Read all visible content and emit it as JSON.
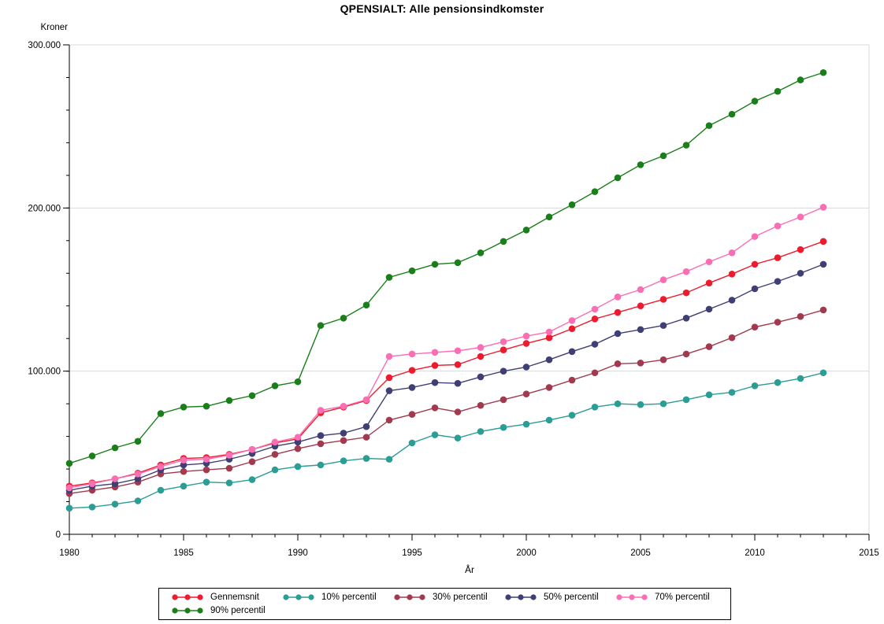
{
  "chart_data": {
    "type": "line",
    "title": "QPENSIALT: Alle pensionsindkomster",
    "ylabel": "Kroner",
    "xlabel": "År",
    "xlim": [
      1980,
      2015
    ],
    "ylim": [
      0,
      300000
    ],
    "grid": "horizontal-major",
    "legend_position": "bottom",
    "x_major_ticks": [
      1980,
      1985,
      1990,
      1995,
      2000,
      2005,
      2010,
      2015
    ],
    "x_minor_step": 1,
    "y_major_ticks": [
      {
        "value": 0,
        "label": "0"
      },
      {
        "value": 100000,
        "label": "100.000"
      },
      {
        "value": 200000,
        "label": "200.000"
      },
      {
        "value": 300000,
        "label": "300.000"
      }
    ],
    "y_minor_step": 20000,
    "x": [
      1980,
      1981,
      1982,
      1983,
      1984,
      1985,
      1986,
      1987,
      1988,
      1989,
      1990,
      1991,
      1992,
      1993,
      1994,
      1995,
      1996,
      1997,
      1998,
      1999,
      2000,
      2001,
      2002,
      2003,
      2004,
      2005,
      2006,
      2007,
      2008,
      2009,
      2010,
      2011,
      2012,
      2013
    ],
    "series": [
      {
        "name": "Gennemsnit",
        "color": "#ed1b2d",
        "values": [
          29500,
          31500,
          34000,
          37500,
          42500,
          46500,
          47000,
          49000,
          52000,
          56000,
          58500,
          74500,
          78000,
          82000,
          96000,
          100500,
          103500,
          104000,
          109000,
          113000,
          117000,
          120500,
          126000,
          132000,
          136000,
          140000,
          144000,
          148000,
          154000,
          159500,
          165500,
          169500,
          174500,
          179500
        ]
      },
      {
        "name": "10% percentil",
        "color": "#2a9d94",
        "values": [
          16000,
          16700,
          18500,
          20500,
          27000,
          29500,
          32000,
          31500,
          33500,
          39500,
          41500,
          42500,
          45000,
          46500,
          46000,
          56000,
          61000,
          59000,
          63000,
          65500,
          67500,
          70000,
          73000,
          78000,
          80000,
          79500,
          80000,
          82500,
          85500,
          87000,
          91000,
          93000,
          95500,
          99000
        ]
      },
      {
        "name": "30% percentil",
        "color": "#a13a4e",
        "values": [
          25000,
          27000,
          29000,
          32000,
          37000,
          38500,
          39500,
          40500,
          44500,
          49000,
          52500,
          55500,
          57500,
          59500,
          70000,
          73500,
          77500,
          75000,
          79000,
          82500,
          86000,
          90000,
          94500,
          99000,
          104500,
          105000,
          107000,
          110500,
          115000,
          120500,
          127000,
          130000,
          133500,
          137500
        ]
      },
      {
        "name": "50% percentil",
        "color": "#3f3f75",
        "values": [
          27000,
          29500,
          31000,
          34000,
          39500,
          42500,
          43500,
          46000,
          49500,
          54000,
          56500,
          60500,
          62000,
          66000,
          88000,
          90000,
          93000,
          92500,
          96500,
          100000,
          102500,
          107000,
          112000,
          116500,
          123000,
          125500,
          128000,
          132500,
          138000,
          143500,
          150500,
          155000,
          160000,
          165500
        ]
      },
      {
        "name": "70% percentil",
        "color": "#fb6eb4",
        "values": [
          28500,
          31000,
          34000,
          37000,
          41500,
          45500,
          46000,
          48500,
          52000,
          56500,
          59500,
          76000,
          78500,
          82500,
          109000,
          110500,
          111500,
          112500,
          114500,
          118000,
          121500,
          124000,
          131000,
          138000,
          145500,
          150000,
          156000,
          161000,
          167000,
          172500,
          182500,
          189000,
          194500,
          200500
        ]
      },
      {
        "name": "90% percentil",
        "color": "#1a7f1a",
        "values": [
          43500,
          48000,
          53000,
          57000,
          74000,
          78000,
          78500,
          82000,
          85000,
          91000,
          93500,
          128000,
          132500,
          140500,
          157500,
          161500,
          165500,
          166500,
          172500,
          179500,
          186500,
          194500,
          202000,
          210000,
          218500,
          226500,
          232000,
          238500,
          250500,
          257500,
          265500,
          271500,
          278500,
          283000
        ]
      }
    ]
  }
}
